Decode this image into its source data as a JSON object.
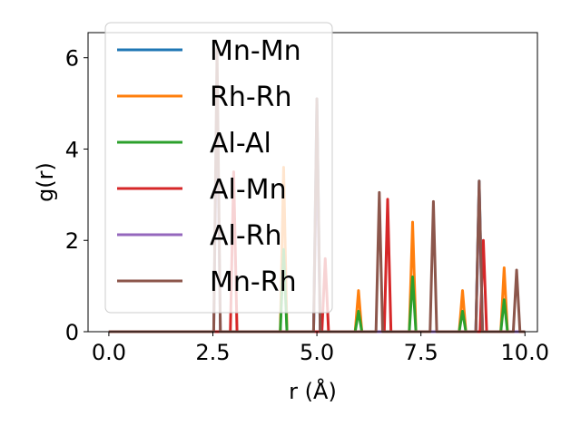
{
  "chart_data": {
    "type": "line",
    "title": "",
    "xlabel": "r (Å)",
    "ylabel": "g(r)",
    "xlim": [
      -0.5,
      10.3
    ],
    "ylim": [
      0,
      6.55
    ],
    "xticks": [
      0.0,
      2.5,
      5.0,
      7.5,
      10.0
    ],
    "xtick_labels": [
      "0.0",
      "2.5",
      "5.0",
      "7.5",
      "10.0"
    ],
    "yticks": [
      0,
      2,
      4,
      6
    ],
    "ytick_labels": [
      "0",
      "2",
      "4",
      "6"
    ],
    "grid": false,
    "legend_position": "upper-left",
    "series": [
      {
        "name": "Mn-Mn",
        "color": "#1f77b4",
        "peaks": [
          [
            5.0,
            5.1
          ],
          [
            8.9,
            3.3
          ]
        ]
      },
      {
        "name": "Rh-Rh",
        "color": "#ff7f0e",
        "peaks": [
          [
            4.2,
            3.6
          ],
          [
            6.0,
            0.9
          ],
          [
            7.3,
            2.4
          ],
          [
            8.5,
            0.9
          ],
          [
            9.5,
            1.4
          ]
        ]
      },
      {
        "name": "Al-Al",
        "color": "#2ca02c",
        "peaks": [
          [
            4.2,
            1.8
          ],
          [
            6.0,
            0.45
          ],
          [
            7.3,
            1.2
          ],
          [
            8.5,
            0.45
          ],
          [
            9.5,
            0.7
          ]
        ]
      },
      {
        "name": "Al-Mn",
        "color": "#d62728",
        "peaks": [
          [
            3.0,
            3.5
          ],
          [
            5.2,
            1.6
          ],
          [
            6.7,
            2.9
          ],
          [
            9.0,
            2.0
          ]
        ]
      },
      {
        "name": "Al-Rh",
        "color": "#9467bd",
        "peaks": [
          [
            2.6,
            5.3
          ],
          [
            5.0,
            4.2
          ],
          [
            8.9,
            3.1
          ]
        ]
      },
      {
        "name": "Mn-Rh",
        "color": "#8c564b",
        "peaks": [
          [
            2.6,
            6.2
          ],
          [
            5.0,
            5.1
          ],
          [
            6.5,
            3.05
          ],
          [
            7.8,
            2.85
          ],
          [
            8.9,
            3.3
          ],
          [
            9.8,
            1.35
          ]
        ]
      }
    ]
  }
}
